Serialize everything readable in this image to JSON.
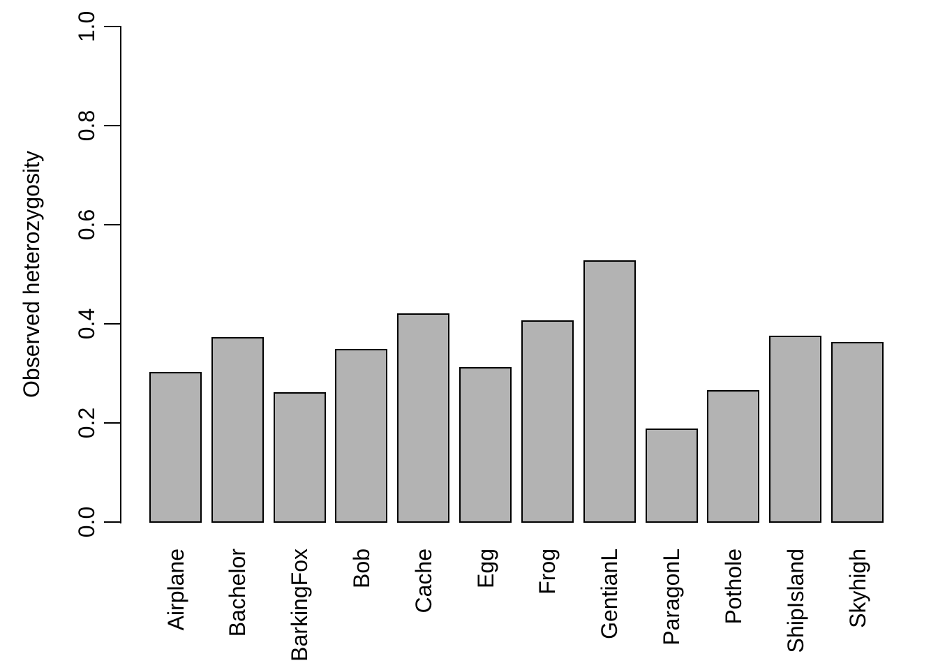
{
  "chart_data": {
    "type": "bar",
    "title": "",
    "xlabel": "",
    "ylabel": "Observed heterozygosity",
    "categories": [
      "Airplane",
      "Bachelor",
      "BarkingFox",
      "Bob",
      "Cache",
      "Egg",
      "Frog",
      "GentianL",
      "ParagonL",
      "Pothole",
      "ShipIsland",
      "Skyhigh"
    ],
    "values": [
      0.303,
      0.373,
      0.261,
      0.349,
      0.421,
      0.312,
      0.407,
      0.528,
      0.188,
      0.266,
      0.375,
      0.363
    ],
    "ylim": [
      0.0,
      1.0
    ],
    "yticks": [
      0.0,
      0.2,
      0.4,
      0.6,
      0.8,
      1.0
    ],
    "ytick_labels": [
      "0.0",
      "0.2",
      "0.4",
      "0.6",
      "0.8",
      "1.0"
    ],
    "grid": "off",
    "legend": "none",
    "bar_fill_color": "#b3b3b3",
    "bar_border_color": "#000000",
    "axis_color": "#000000",
    "text_color": "#000000",
    "background_color": "#ffffff"
  }
}
